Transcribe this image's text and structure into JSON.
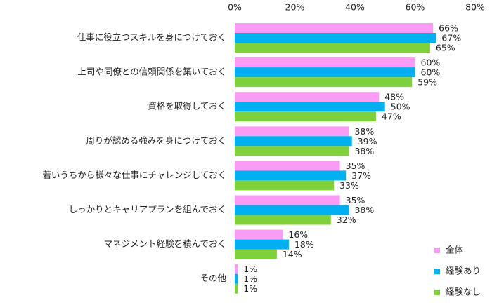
{
  "chart_data": {
    "type": "bar",
    "orientation": "horizontal",
    "categories": [
      "仕事に役立つスキルを身につけておく",
      "上司や同僚との信頼関係を築いておく",
      "資格を取得しておく",
      "周りが認める強みを身につけておく",
      "若いうちから様々な仕事にチャレンジしておく",
      "しっかりとキャリアプランを組んでおく",
      "マネジメント経験を積んでおく",
      "その他"
    ],
    "series": [
      {
        "name": "全体",
        "color": "#fa9cf5",
        "values": [
          66,
          60,
          48,
          38,
          35,
          35,
          16,
          1
        ],
        "value_labels": [
          "66%",
          "60%",
          "48%",
          "38%",
          "35%",
          "35%",
          "16%",
          "1%"
        ]
      },
      {
        "name": "経験あり",
        "color": "#00b0f0",
        "values": [
          67,
          60,
          50,
          39,
          37,
          38,
          18,
          1
        ],
        "value_labels": [
          "67%",
          "60%",
          "50%",
          "39%",
          "37%",
          "38%",
          "18%",
          "1%"
        ]
      },
      {
        "name": "経験なし",
        "color": "#7fd13b",
        "values": [
          65,
          59,
          47,
          38,
          33,
          32,
          14,
          1
        ],
        "value_labels": [
          "65%",
          "59%",
          "47%",
          "38%",
          "33%",
          "32%",
          "14%",
          "1%"
        ]
      }
    ],
    "xlim": [
      0,
      80
    ],
    "xticks": [
      {
        "value": 0,
        "label": "0%"
      },
      {
        "value": 20,
        "label": "20%"
      },
      {
        "value": 40,
        "label": "40%"
      },
      {
        "value": 60,
        "label": "60%"
      },
      {
        "value": 80,
        "label": "80%"
      }
    ],
    "grid": false,
    "legend": "bottom-right"
  }
}
